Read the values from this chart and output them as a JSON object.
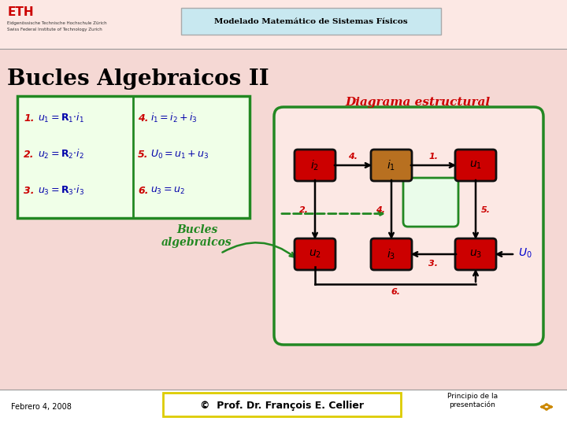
{
  "title": "Bucles Algebraicos II",
  "header": "Modelado Matemático de Sistemas Físicos",
  "diagrama_title": "Diagrama estructural",
  "bucles_text": "Bucles\nalgebraicos",
  "footer_left": "Febrero 4, 2008",
  "footer_center": "©  Prof. Dr. François E. Cellier",
  "footer_right": "Principio de la\npresentación",
  "red_box": "#cc0000",
  "orange_box": "#b87020",
  "green_border": "#228822",
  "top_bg": "#f5d0c8",
  "slide_bg": "#f5d8d4",
  "header_bg": "#c8e8f0",
  "eq_box_bg": "#f0ffe8",
  "diag_bg": "#fce8e4",
  "footer_bg": "#ffffff",
  "eq_num_color": "#cc0000",
  "eq_text_color": "#0000aa",
  "diag_title_color": "#cc0000",
  "bucles_color": "#228822",
  "U0_color": "#0000cc",
  "arrow_num_color": "#cc0000",
  "nav_arrow_color": "#cc8800"
}
